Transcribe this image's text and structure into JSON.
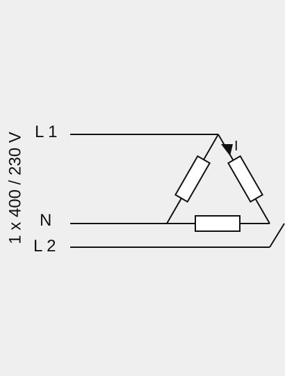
{
  "diagram": {
    "supply_label": "1 x 400 / 230 V",
    "line1_label": "L 1",
    "neutral_label": "N",
    "line2_label": "L 2",
    "current_label": "I",
    "colors": {
      "background": "#efefef",
      "line": "#111111",
      "resistor_fill": "#ffffff"
    }
  }
}
